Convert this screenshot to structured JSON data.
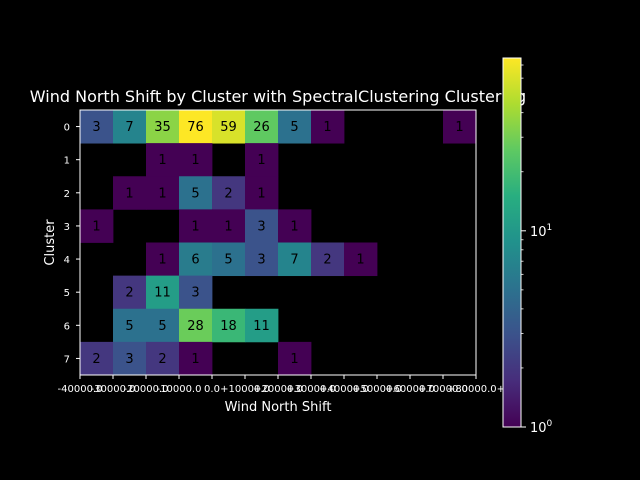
{
  "chart_data": {
    "type": "heatmap",
    "title": "Wind North Shift by Cluster with SpectralClustering Clustering",
    "xlabel": "Wind North Shift",
    "ylabel": "Cluster",
    "x_tick_labels": [
      "-40000.0",
      "-30000.0",
      "-20000.0",
      "-10000.0",
      "0.0",
      "+10000.0",
      "+20000.0",
      "+30000.0",
      "+40000.0",
      "+50000.0",
      "+60000.0",
      "+70000.0",
      "+80000.0+"
    ],
    "y_tick_labels": [
      "0",
      "1",
      "2",
      "3",
      "4",
      "5",
      "6",
      "7"
    ],
    "values": [
      [
        3,
        7,
        35,
        76,
        59,
        26,
        5,
        1,
        null,
        null,
        null,
        1
      ],
      [
        null,
        null,
        1,
        1,
        null,
        1,
        null,
        null,
        null,
        null,
        null,
        null
      ],
      [
        null,
        1,
        1,
        5,
        2,
        1,
        null,
        null,
        null,
        null,
        null,
        null
      ],
      [
        1,
        null,
        null,
        1,
        1,
        3,
        1,
        null,
        null,
        null,
        null,
        null
      ],
      [
        null,
        null,
        1,
        6,
        5,
        3,
        7,
        2,
        1,
        null,
        null,
        null
      ],
      [
        null,
        2,
        11,
        3,
        null,
        null,
        null,
        null,
        null,
        null,
        null,
        null
      ],
      [
        null,
        5,
        5,
        28,
        18,
        11,
        null,
        null,
        null,
        null,
        null,
        null
      ],
      [
        2,
        3,
        2,
        1,
        null,
        null,
        1,
        null,
        null,
        null,
        null,
        null
      ]
    ],
    "colorbar": {
      "scale": "log",
      "range": [
        1,
        76
      ],
      "colormap": "viridis",
      "tick_labels": [
        {
          "value": 1,
          "base": "10",
          "exp": "0"
        },
        {
          "value": 10,
          "base": "10",
          "exp": "1"
        }
      ]
    },
    "colors": {
      "background": "#000000",
      "foreground": "#ffffff",
      "cell_text": "#000000"
    }
  }
}
